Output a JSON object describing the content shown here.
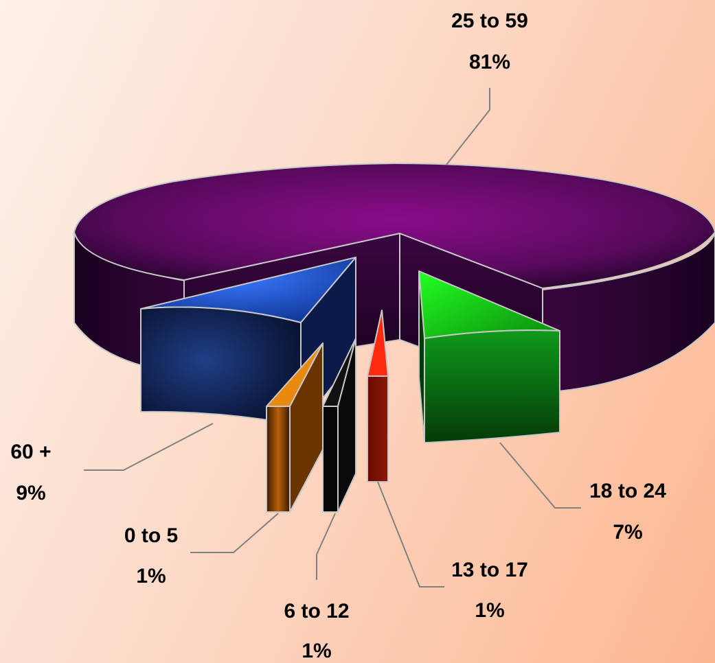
{
  "chart_data": {
    "type": "pie",
    "style": "3d-exploded",
    "legend": "none",
    "slices": [
      {
        "category": "25 to 59",
        "value": 81,
        "value_label": "81%",
        "color": "#7b0a7b"
      },
      {
        "category": "18 to 24",
        "value": 7,
        "value_label": "7%",
        "color": "#0e9a0e"
      },
      {
        "category": "13 to 17",
        "value": 1,
        "value_label": "1%",
        "color": "#e8260a"
      },
      {
        "category": "6 to 12",
        "value": 1,
        "value_label": "1%",
        "color": "#1a1a1a"
      },
      {
        "category": "0 to 5",
        "value": 1,
        "value_label": "1%",
        "color": "#e88a10"
      },
      {
        "category": "60 +",
        "value": 9,
        "value_label": "9%",
        "color": "#2f62e8"
      }
    ]
  }
}
